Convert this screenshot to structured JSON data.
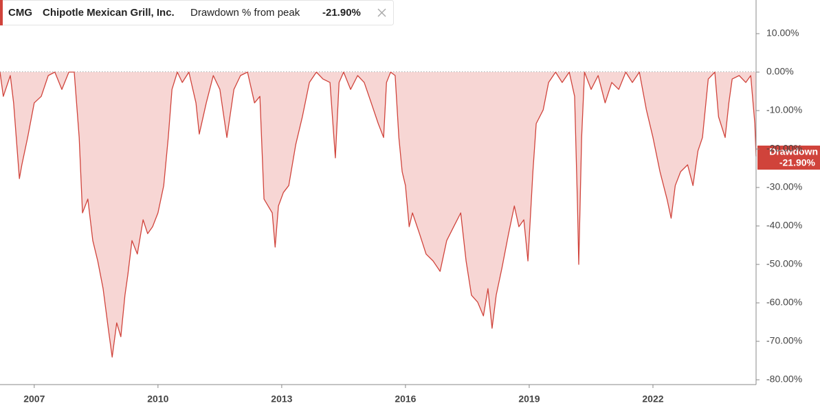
{
  "header": {
    "symbol": "CMG",
    "name": "Chipotle Mexican Grill, Inc.",
    "metric": "Drawdown % from peak",
    "value": "-21.90%"
  },
  "chart_data": {
    "type": "area",
    "callout_value": "-21.90%",
    "series": [
      {
        "name": "Drawdown",
        "color": "#d0433b",
        "fill": "#f7d6d4",
        "x": [
          2006.17,
          2006.25,
          2006.42,
          2006.5,
          2006.64,
          2006.7,
          2006.84,
          2007.0,
          2007.17,
          2007.34,
          2007.5,
          2007.67,
          2007.84,
          2007.97,
          2008.09,
          2008.17,
          2008.3,
          2008.42,
          2008.54,
          2008.67,
          2008.8,
          2008.89,
          2009.0,
          2009.1,
          2009.2,
          2009.27,
          2009.37,
          2009.5,
          2009.64,
          2009.75,
          2009.87,
          2010.0,
          2010.14,
          2010.25,
          2010.34,
          2010.47,
          2010.59,
          2010.75,
          2010.92,
          2011.0,
          2011.17,
          2011.34,
          2011.5,
          2011.67,
          2011.84,
          2012.0,
          2012.17,
          2012.34,
          2012.47,
          2012.57,
          2012.67,
          2012.77,
          2012.84,
          2012.92,
          2013.04,
          2013.17,
          2013.34,
          2013.5,
          2013.67,
          2013.84,
          2014.0,
          2014.17,
          2014.3,
          2014.39,
          2014.5,
          2014.67,
          2014.84,
          2015.0,
          2015.17,
          2015.34,
          2015.47,
          2015.54,
          2015.64,
          2015.75,
          2015.84,
          2015.92,
          2016.0,
          2016.09,
          2016.17,
          2016.34,
          2016.5,
          2016.67,
          2016.84,
          2017.0,
          2017.17,
          2017.34,
          2017.47,
          2017.6,
          2017.75,
          2017.89,
          2018.0,
          2018.1,
          2018.2,
          2018.34,
          2018.5,
          2018.64,
          2018.75,
          2018.87,
          2018.97,
          2019.09,
          2019.17,
          2019.34,
          2019.47,
          2019.64,
          2019.8,
          2019.97,
          2020.1,
          2020.17,
          2020.2,
          2020.27,
          2020.34,
          2020.5,
          2020.67,
          2020.84,
          2021.0,
          2021.17,
          2021.34,
          2021.5,
          2021.67,
          2021.84,
          2022.0,
          2022.17,
          2022.34,
          2022.44,
          2022.54,
          2022.67,
          2022.84,
          2022.97,
          2023.09,
          2023.2,
          2023.34,
          2023.5,
          2023.59,
          2023.75,
          2023.84,
          2023.92,
          2024.09,
          2024.25,
          2024.37,
          2024.47,
          2024.5
        ],
        "values": [
          0,
          -6.3,
          -0.9,
          -8.0,
          -27.7,
          -24.1,
          -17.0,
          -8.0,
          -6.3,
          -0.9,
          0,
          -4.5,
          0,
          0,
          -17.0,
          -36.6,
          -33.0,
          -43.8,
          -49.1,
          -56.3,
          -67.0,
          -74.1,
          -65.2,
          -68.8,
          -58.0,
          -52.7,
          -43.8,
          -47.3,
          -38.4,
          -42.0,
          -40.2,
          -36.6,
          -29.5,
          -17.0,
          -4.5,
          0,
          -2.7,
          0,
          -8.0,
          -16.1,
          -8.0,
          -0.9,
          -4.5,
          -17.0,
          -4.5,
          -0.9,
          0,
          -8.0,
          -6.3,
          -33.0,
          -34.8,
          -36.6,
          -45.5,
          -34.8,
          -31.3,
          -29.5,
          -18.8,
          -11.6,
          -2.7,
          0,
          -1.8,
          -2.7,
          -22.3,
          -2.7,
          0,
          -4.5,
          -0.9,
          -2.7,
          -8.0,
          -13.4,
          -17.0,
          -2.7,
          0,
          -0.9,
          -17.0,
          -25.9,
          -29.5,
          -40.2,
          -36.6,
          -42.0,
          -47.3,
          -49.1,
          -51.8,
          -43.8,
          -40.2,
          -36.6,
          -49.1,
          -58.0,
          -59.8,
          -63.4,
          -56.3,
          -66.6,
          -58.0,
          -50.9,
          -42.0,
          -34.8,
          -40.2,
          -38.4,
          -49.1,
          -25.9,
          -13.4,
          -9.8,
          -2.7,
          0,
          -2.7,
          0,
          -6.3,
          -34.8,
          -50.0,
          -17.0,
          0,
          -4.5,
          -0.9,
          -8.0,
          -2.7,
          -4.5,
          0,
          -2.7,
          0,
          -9.8,
          -17.0,
          -25.9,
          -33.0,
          -38.0,
          -29.5,
          -25.9,
          -24.1,
          -29.5,
          -20.5,
          -17.0,
          -1.8,
          0,
          -11.6,
          -17.0,
          -8.0,
          -1.8,
          -0.9,
          -2.7,
          -0.9,
          -13.4,
          -21.9
        ]
      }
    ],
    "xlim": [
      2006.17,
      2024.5
    ],
    "xticks": [
      2007,
      2010,
      2013,
      2016,
      2019,
      2022
    ],
    "ylim": [
      -81.25,
      18.75
    ],
    "yticks": [
      {
        "value": 10,
        "label": "10.00%"
      },
      {
        "value": 0,
        "label": "0.00%"
      },
      {
        "value": -10,
        "label": "-10.00%"
      },
      {
        "value": -20,
        "label": "-20.00%"
      },
      {
        "value": -30,
        "label": "-30.00%"
      },
      {
        "value": -40,
        "label": "-40.00%"
      },
      {
        "value": -50,
        "label": "-50.00%"
      },
      {
        "value": -60,
        "label": "-60.00%"
      },
      {
        "value": -70,
        "label": "-70.00%"
      },
      {
        "value": -80,
        "label": "-80.00%"
      }
    ]
  }
}
